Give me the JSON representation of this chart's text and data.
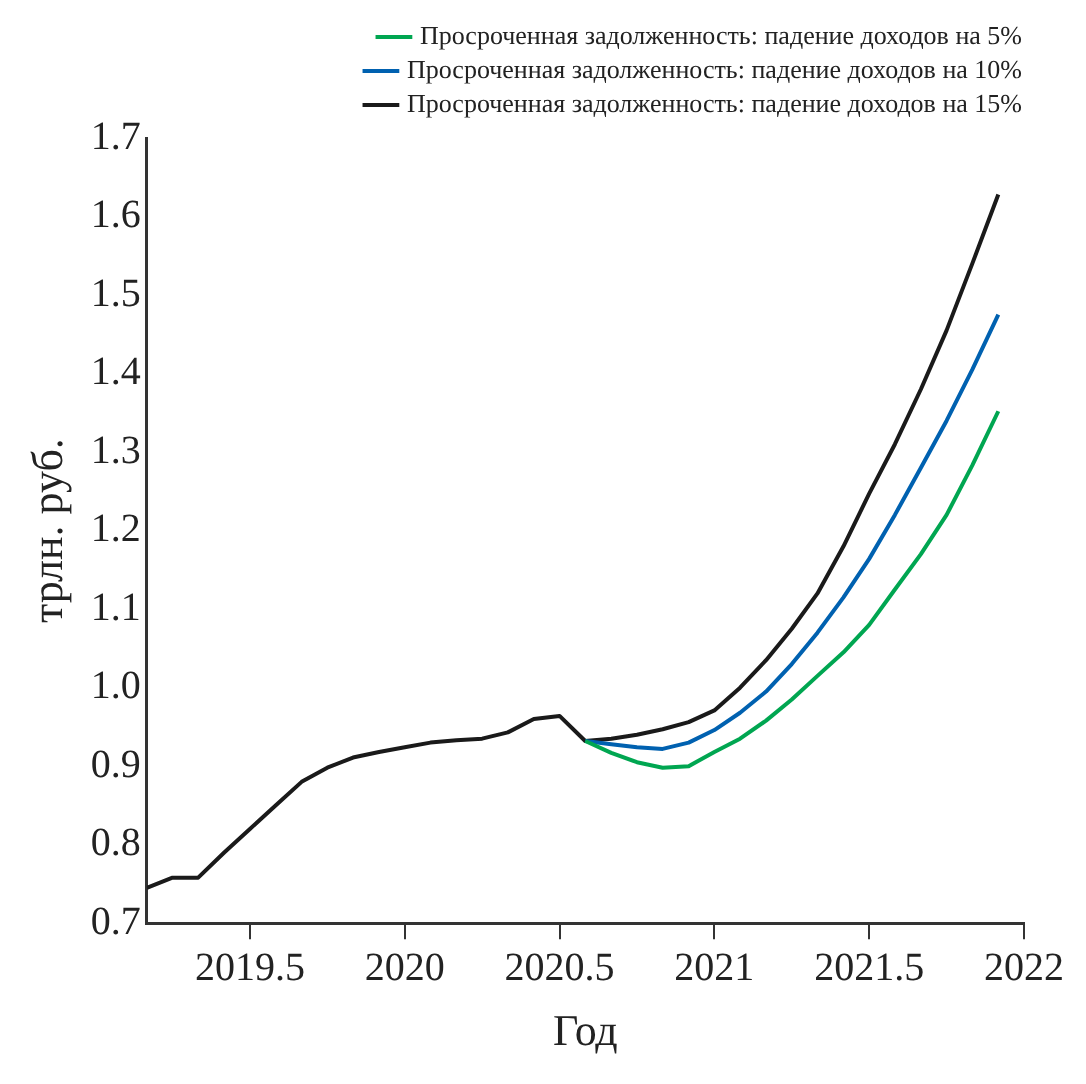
{
  "chart_data": {
    "type": "line",
    "xlabel": "Год",
    "ylabel": "трлн. руб.",
    "x": [
      2019.167,
      2019.25,
      2019.333,
      2019.417,
      2019.5,
      2019.583,
      2019.667,
      2019.75,
      2019.833,
      2019.917,
      2020,
      2020.083,
      2020.167,
      2020.25,
      2020.333,
      2020.417,
      2020.5,
      2020.583,
      2020.667,
      2020.75,
      2020.833,
      2020.917,
      2021,
      2021.083,
      2021.167,
      2021.25,
      2021.333,
      2021.417,
      2021.5,
      2021.583,
      2021.667,
      2021.75,
      2021.833,
      2021.917
    ],
    "series": [
      {
        "name": "Просроченная задолженность: падение доходов на 5%",
        "color": "#00a651",
        "values": [
          null,
          null,
          null,
          null,
          null,
          null,
          null,
          null,
          null,
          null,
          null,
          null,
          null,
          null,
          null,
          null,
          null,
          0.932,
          0.917,
          0.905,
          0.898,
          0.9,
          0.918,
          0.935,
          0.958,
          0.985,
          1.015,
          1.045,
          1.08,
          1.125,
          1.17,
          1.22,
          1.283,
          1.352
        ]
      },
      {
        "name": "Просроченная задолженность: падение доходов на 10%",
        "color": "#0061b0",
        "values": [
          null,
          null,
          null,
          null,
          null,
          null,
          null,
          null,
          null,
          null,
          null,
          null,
          null,
          null,
          null,
          null,
          null,
          0.932,
          0.928,
          0.924,
          0.922,
          0.93,
          0.946,
          0.968,
          0.995,
          1.03,
          1.07,
          1.115,
          1.164,
          1.22,
          1.28,
          1.34,
          1.405,
          1.475
        ]
      },
      {
        "name": "Просроченная задолженность: падение доходов на 15%",
        "color": "#1a1a1a",
        "values": [
          0.745,
          0.758,
          0.758,
          0.79,
          0.82,
          0.85,
          0.88,
          0.898,
          0.911,
          0.918,
          0.924,
          0.93,
          0.933,
          0.935,
          0.943,
          0.96,
          0.964,
          0.932,
          0.935,
          0.94,
          0.947,
          0.956,
          0.971,
          1.0,
          1.035,
          1.075,
          1.12,
          1.18,
          1.247,
          1.31,
          1.38,
          1.455,
          1.54,
          1.628
        ]
      }
    ],
    "xlim": [
      2019.167,
      2022
    ],
    "xticks": [
      2019.5,
      2020,
      2020.5,
      2021,
      2021.5,
      2022
    ],
    "ylim": [
      0.7,
      1.7
    ],
    "yticks": [
      {
        "value": 0.7,
        "label": "0.7"
      },
      {
        "value": 0.8,
        "label": "0.8"
      },
      {
        "value": 0.9,
        "label": "0.9"
      },
      {
        "value": 1.0,
        "label": "1.0"
      },
      {
        "value": 1.1,
        "label": "1.1"
      },
      {
        "value": 1.2,
        "label": "1.2"
      },
      {
        "value": 1.3,
        "label": "1.3"
      },
      {
        "value": 1.4,
        "label": "1.4"
      },
      {
        "value": 1.5,
        "label": "1.5"
      },
      {
        "value": 1.6,
        "label": "1.6"
      },
      {
        "value": 1.7,
        "label": "1.7"
      }
    ],
    "grid": false,
    "legend": "top",
    "marker": "none",
    "line_style": "solid"
  }
}
